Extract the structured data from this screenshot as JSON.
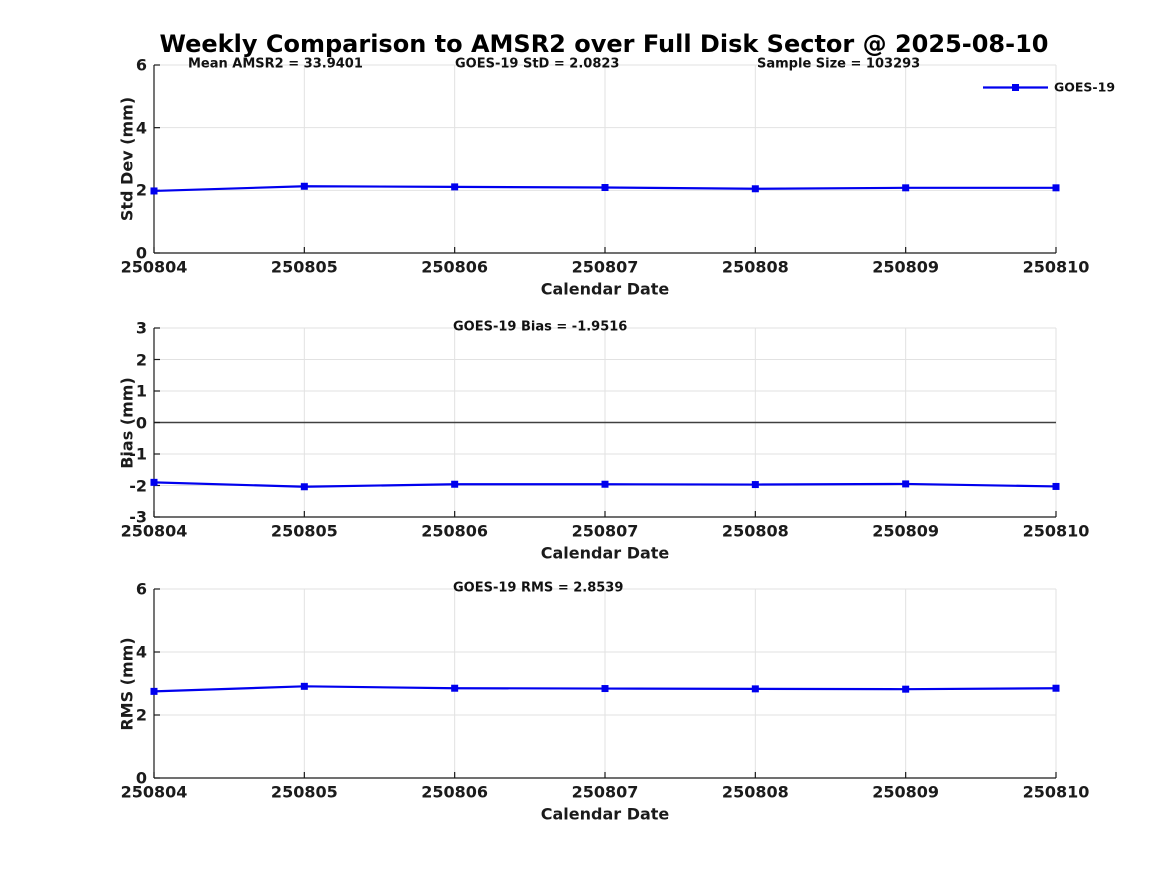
{
  "page_title": "Weekly Comparison to AMSR2 over Full Disk Sector @ 2025-08-10",
  "legend": {
    "label": "GOES-19",
    "position": "top-right-outside",
    "box": false
  },
  "xlabel": "Calendar Date",
  "categories": [
    "250804",
    "250805",
    "250806",
    "250807",
    "250808",
    "250809",
    "250810"
  ],
  "colors": {
    "line": "#0000ee",
    "grid": "#e2e2e2",
    "axis": "#1a1a1a",
    "text": "#1b1b1b",
    "zero_line": "#404040",
    "background": "#ffffff"
  },
  "chart_data": [
    {
      "type": "line",
      "name": "std-dev-panel",
      "ylabel": "Std Dev (mm)",
      "ylim": [
        0,
        6
      ],
      "yticks": [
        0,
        2,
        4,
        6
      ],
      "grid": true,
      "zero_line": false,
      "annotations": [
        "Mean AMSR2 = 33.9401",
        "GOES-19 StD = 2.0823",
        "Sample Size = 103293"
      ],
      "series": [
        {
          "name": "GOES-19",
          "marker": "square",
          "values": [
            1.98,
            2.13,
            2.11,
            2.09,
            2.05,
            2.08,
            2.08
          ]
        }
      ]
    },
    {
      "type": "line",
      "name": "bias-panel",
      "ylabel": "Bias (mm)",
      "ylim": [
        -3,
        3
      ],
      "yticks": [
        -3,
        -2,
        -1,
        0,
        1,
        2,
        3
      ],
      "grid": true,
      "zero_line": true,
      "annotations": [
        "GOES-19 Bias  = -1.9516"
      ],
      "series": [
        {
          "name": "GOES-19",
          "marker": "square",
          "values": [
            -1.9,
            -2.04,
            -1.96,
            -1.96,
            -1.97,
            -1.95,
            -2.03
          ]
        }
      ]
    },
    {
      "type": "line",
      "name": "rms-panel",
      "ylabel": "RMS (mm)",
      "ylim": [
        0,
        6
      ],
      "yticks": [
        0,
        2,
        4,
        6
      ],
      "grid": true,
      "zero_line": false,
      "annotations": [
        "GOES-19 RMS = 2.8539"
      ],
      "series": [
        {
          "name": "GOES-19",
          "marker": "square",
          "values": [
            2.75,
            2.91,
            2.85,
            2.84,
            2.83,
            2.82,
            2.85
          ]
        }
      ]
    }
  ]
}
